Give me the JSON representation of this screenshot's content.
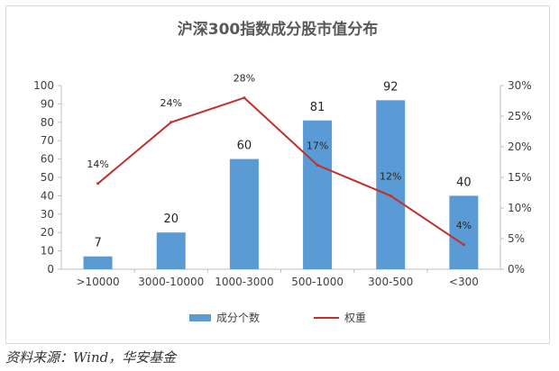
{
  "chart_data": {
    "type": "bar",
    "title": "沪深300指数成分股市值分布",
    "categories": [
      ">10000",
      "3000-10000",
      "1000-3000",
      "500-1000",
      "300-500",
      "<300"
    ],
    "series": [
      {
        "name": "成分个数",
        "type": "bar",
        "axis": "left",
        "values": [
          7,
          20,
          60,
          81,
          92,
          40
        ],
        "labels": [
          "7",
          "20",
          "60",
          "81",
          "92",
          "40"
        ],
        "color": "#5b9bd5"
      },
      {
        "name": "权重",
        "type": "line",
        "axis": "right",
        "values": [
          14,
          24,
          28,
          17,
          12,
          4
        ],
        "labels": [
          "14%",
          "24%",
          "28%",
          "17%",
          "12%",
          "4%"
        ],
        "color": "#c0302c"
      }
    ],
    "y_left": {
      "ylim": [
        0,
        100
      ],
      "ticks": [
        "0",
        "10",
        "20",
        "30",
        "40",
        "50",
        "60",
        "70",
        "80",
        "90",
        "100"
      ]
    },
    "y_right": {
      "ylim": [
        0,
        30
      ],
      "ticks": [
        "0%",
        "5%",
        "10%",
        "15%",
        "20%",
        "25%",
        "30%"
      ]
    },
    "grid": false,
    "legend": "bottom"
  },
  "source": "资料来源：Wind，华安基金"
}
